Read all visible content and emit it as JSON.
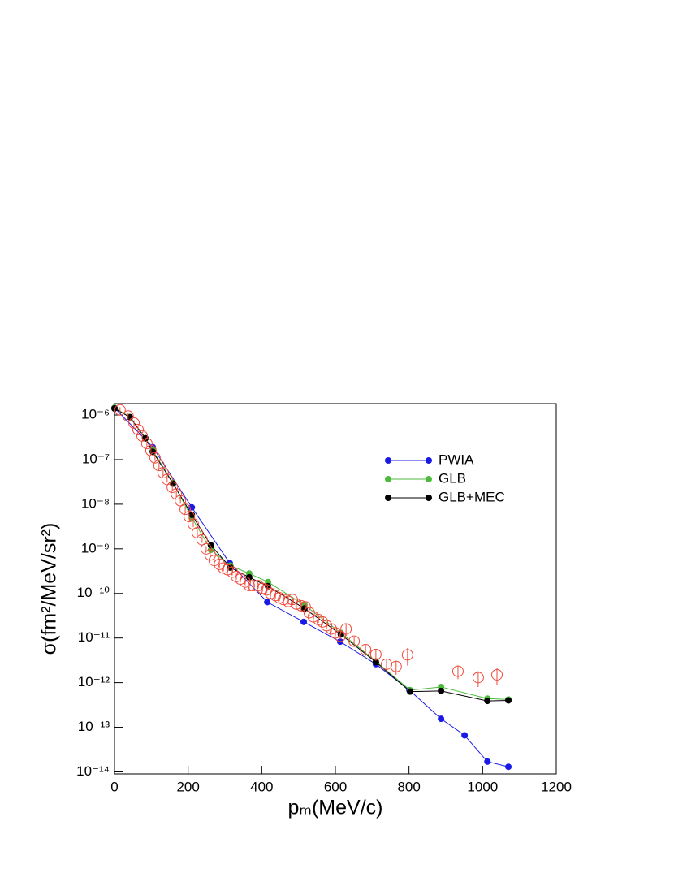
{
  "chart_data": {
    "type": "line",
    "x_label": "pₘ(MeV/c)",
    "y_label": "σ(fm²/MeV/sr²)",
    "xlim": [
      0,
      1200
    ],
    "xticks": [
      0,
      200,
      400,
      600,
      800,
      1000,
      1200
    ],
    "ylim": [
      9e-15,
      1.8e-06
    ],
    "log_y": true,
    "yticks": [
      {
        "value": 1e-14,
        "label": "10⁻¹⁴"
      },
      {
        "value": 1e-13,
        "label": "10⁻¹³"
      },
      {
        "value": 1e-12,
        "label": "10⁻¹²"
      },
      {
        "value": 1e-11,
        "label": "10⁻¹¹"
      },
      {
        "value": 1e-10,
        "label": "10⁻¹⁰"
      },
      {
        "value": 1e-09,
        "label": "10⁻⁹"
      },
      {
        "value": 1e-08,
        "label": "10⁻⁸"
      },
      {
        "value": 1e-07,
        "label": "10⁻⁷"
      },
      {
        "value": 1e-06,
        "label": "10⁻⁶"
      }
    ],
    "legend": "upper right",
    "series": [
      {
        "name": "PWIA",
        "color": "#1a1ae6",
        "marker": "filled-circle",
        "x": [
          0,
          104,
          210,
          313,
          415,
          514,
          613,
          710,
          801,
          887,
          951,
          1013,
          1070
        ],
        "values": [
          1.45e-06,
          1.9e-07,
          8.5e-09,
          4.8e-10,
          6.4e-11,
          2.3e-11,
          8.3e-12,
          2.6e-12,
          6.8e-13,
          1.55e-13,
          6.6e-14,
          1.7e-14,
          1.3e-14
        ]
      },
      {
        "name": "GLB",
        "color": "#4cbb3c",
        "marker": "filled-circle",
        "x": [
          0,
          42,
          84,
          104,
          159,
          210,
          262,
          315,
          366,
          417,
          516,
          615,
          710,
          803,
          887,
          1013,
          1070
        ],
        "values": [
          1.45e-06,
          9e-07,
          3e-07,
          1.6e-07,
          3e-08,
          5e-09,
          9.5e-10,
          4.2e-10,
          2.8e-10,
          1.8e-10,
          5.5e-11,
          1.3e-11,
          3e-12,
          6.8e-13,
          8e-13,
          4.4e-13,
          4.2e-13
        ]
      },
      {
        "name": "GLB+MEC",
        "color": "#000000",
        "marker": "filled-circle",
        "x": [
          0,
          42,
          84,
          104,
          159,
          210,
          262,
          315,
          366,
          417,
          516,
          615,
          710,
          803,
          887,
          1013,
          1070
        ],
        "values": [
          1.4e-06,
          8.9e-07,
          3e-07,
          1.5e-07,
          2.9e-08,
          5.8e-09,
          1.2e-09,
          3.8e-10,
          2.3e-10,
          1.45e-10,
          4.6e-11,
          1.2e-11,
          2.9e-12,
          6.3e-13,
          6.5e-13,
          3.9e-13,
          4e-13
        ]
      },
      {
        "color": "#f04a3c",
        "marker": "open-circle",
        "x": [
          15,
          37,
          53,
          64,
          75,
          88,
          99,
          110,
          121,
          132,
          143,
          157,
          168,
          179,
          192,
          203,
          214,
          225,
          238,
          249,
          260,
          271,
          285,
          296,
          307,
          320,
          331,
          342,
          355,
          366,
          377,
          390,
          402,
          413,
          424,
          437,
          448,
          459,
          472,
          483,
          494,
          507,
          518,
          529,
          540,
          554,
          565,
          576,
          589,
          600,
          613,
          629,
          651,
          682,
          710,
          739,
          765,
          796,
          933,
          988,
          1039
        ],
        "values": [
          1.3e-06,
          9.5e-07,
          6.6e-07,
          4.7e-07,
          3.4e-07,
          2.3e-07,
          1.6e-07,
          1.1e-07,
          7.4e-08,
          5.1e-08,
          3.6e-08,
          2.4e-08,
          1.7e-08,
          1.2e-08,
          7.7e-09,
          5.3e-09,
          3.6e-09,
          2.3e-09,
          1.6e-09,
          1e-09,
          7.3e-10,
          5.5e-10,
          4.5e-10,
          3.7e-10,
          3.4e-10,
          3e-10,
          2.4e-10,
          2.1e-10,
          1.8e-10,
          1.5e-10,
          1.5e-10,
          1.5e-10,
          1.3e-10,
          1.2e-10,
          1e-10,
          9e-11,
          8e-11,
          7.3e-11,
          6.6e-11,
          7.3e-11,
          5.8e-11,
          5.3e-11,
          5e-11,
          3.7e-11,
          3e-11,
          2.6e-11,
          2.3e-11,
          1.9e-11,
          1.6e-11,
          1.3e-11,
          1.1e-11,
          1.6e-11,
          8.5e-12,
          5.5e-12,
          4.3e-12,
          2.6e-12,
          2.3e-12,
          4.2e-12,
          1.8e-12,
          1.3e-12,
          1.5e-12
        ],
        "errors": [
          2e-07,
          1.4e-07,
          1e-07,
          7e-08,
          5e-08,
          3.5e-08,
          2.4e-08,
          1.6e-08,
          1.1e-08,
          7.6e-09,
          5.4e-09,
          3.6e-09,
          2.5e-09,
          1.8e-09,
          1.2e-09,
          8e-10,
          5.4e-10,
          3.5e-10,
          2.4e-10,
          1.5e-10,
          1.1e-10,
          8e-11,
          7e-11,
          5.5e-11,
          5e-11,
          4.5e-11,
          3.6e-11,
          3.2e-11,
          2.7e-11,
          2.2e-11,
          2.2e-11,
          2.2e-11,
          2e-11,
          1.8e-11,
          1.5e-11,
          1.4e-11,
          1.2e-11,
          1.1e-11,
          1e-11,
          1.1e-11,
          9e-12,
          8e-12,
          7.5e-12,
          5.5e-12,
          4.5e-12,
          4e-12,
          3.5e-12,
          3e-12,
          2.4e-12,
          2e-12,
          1.7e-12,
          5e-12,
          2e-12,
          1.5e-12,
          1.2e-12,
          8e-13,
          8e-13,
          1.8e-12,
          6e-13,
          5e-13,
          6e-13
        ]
      }
    ]
  }
}
